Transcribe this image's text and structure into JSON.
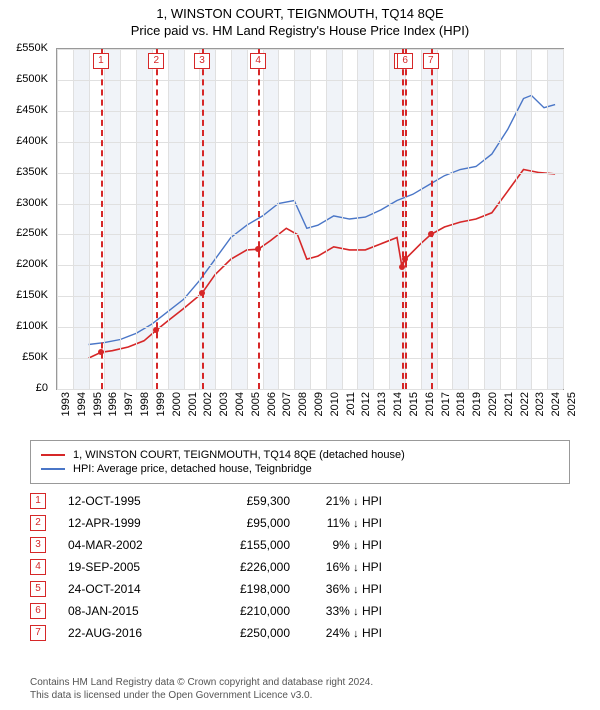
{
  "title": "1, WINSTON COURT, TEIGNMOUTH, TQ14 8QE",
  "subtitle": "Price paid vs. HM Land Registry's House Price Index (HPI)",
  "chart": {
    "type": "line",
    "background_color": "#ffffff",
    "band_color": "#f0f3f8",
    "grid_color": "#e0e0e0",
    "axis_color": "#999999",
    "ylim": [
      0,
      550000
    ],
    "ytick_step": 50000,
    "yticks_labels": [
      "£0",
      "£50K",
      "£100K",
      "£150K",
      "£200K",
      "£250K",
      "£300K",
      "£350K",
      "£400K",
      "£450K",
      "£500K",
      "£550K"
    ],
    "xlim": [
      1993,
      2025
    ],
    "xticks": [
      1993,
      1994,
      1995,
      1996,
      1997,
      1998,
      1999,
      2000,
      2001,
      2002,
      2003,
      2004,
      2005,
      2006,
      2007,
      2008,
      2009,
      2010,
      2011,
      2012,
      2013,
      2014,
      2015,
      2016,
      2017,
      2018,
      2019,
      2020,
      2021,
      2022,
      2023,
      2024,
      2025
    ],
    "event_line_color": "#d62728",
    "event_line_dash": "4,3",
    "series": {
      "red": {
        "label": "1, WINSTON COURT, TEIGNMOUTH, TQ14 8QE (detached house)",
        "color": "#d62728",
        "line_width": 1.6,
        "points": [
          [
            1995.0,
            50000
          ],
          [
            1995.78,
            59300
          ],
          [
            1996.5,
            62000
          ],
          [
            1997.5,
            68000
          ],
          [
            1998.5,
            78000
          ],
          [
            1999.28,
            95000
          ],
          [
            2000.0,
            110000
          ],
          [
            2001.0,
            130000
          ],
          [
            2002.17,
            155000
          ],
          [
            2003.0,
            185000
          ],
          [
            2004.0,
            210000
          ],
          [
            2005.0,
            225000
          ],
          [
            2005.72,
            226000
          ],
          [
            2006.5,
            240000
          ],
          [
            2007.5,
            260000
          ],
          [
            2008.2,
            250000
          ],
          [
            2008.8,
            210000
          ],
          [
            2009.5,
            215000
          ],
          [
            2010.5,
            230000
          ],
          [
            2011.5,
            225000
          ],
          [
            2012.5,
            225000
          ],
          [
            2013.5,
            235000
          ],
          [
            2014.5,
            245000
          ],
          [
            2014.81,
            198000
          ],
          [
            2015.02,
            210000
          ],
          [
            2016.0,
            235000
          ],
          [
            2016.64,
            250000
          ],
          [
            2017.5,
            262000
          ],
          [
            2018.5,
            270000
          ],
          [
            2019.5,
            275000
          ],
          [
            2020.5,
            285000
          ],
          [
            2021.5,
            320000
          ],
          [
            2022.5,
            355000
          ],
          [
            2023.5,
            350000
          ],
          [
            2024.5,
            348000
          ]
        ],
        "markers": [
          [
            1995.78,
            59300
          ],
          [
            1999.28,
            95000
          ],
          [
            2002.17,
            155000
          ],
          [
            2005.72,
            226000
          ],
          [
            2014.81,
            198000
          ],
          [
            2015.02,
            210000
          ],
          [
            2016.64,
            250000
          ]
        ]
      },
      "blue": {
        "label": "HPI: Average price, detached house, Teignbridge",
        "color": "#4a76c7",
        "line_width": 1.4,
        "points": [
          [
            1995.0,
            72000
          ],
          [
            1996.0,
            75000
          ],
          [
            1997.0,
            80000
          ],
          [
            1998.0,
            90000
          ],
          [
            1999.0,
            105000
          ],
          [
            2000.0,
            125000
          ],
          [
            2001.0,
            145000
          ],
          [
            2002.0,
            175000
          ],
          [
            2003.0,
            210000
          ],
          [
            2004.0,
            245000
          ],
          [
            2005.0,
            265000
          ],
          [
            2006.0,
            280000
          ],
          [
            2007.0,
            300000
          ],
          [
            2008.0,
            305000
          ],
          [
            2008.8,
            260000
          ],
          [
            2009.5,
            265000
          ],
          [
            2010.5,
            280000
          ],
          [
            2011.5,
            275000
          ],
          [
            2012.5,
            278000
          ],
          [
            2013.5,
            290000
          ],
          [
            2014.5,
            305000
          ],
          [
            2015.5,
            315000
          ],
          [
            2016.5,
            330000
          ],
          [
            2017.5,
            345000
          ],
          [
            2018.5,
            355000
          ],
          [
            2019.5,
            360000
          ],
          [
            2020.5,
            380000
          ],
          [
            2021.5,
            420000
          ],
          [
            2022.5,
            470000
          ],
          [
            2023.0,
            475000
          ],
          [
            2023.8,
            455000
          ],
          [
            2024.5,
            460000
          ]
        ]
      }
    }
  },
  "events": [
    {
      "n": "1",
      "x": 1995.78,
      "date": "12-OCT-1995",
      "price": "£59,300",
      "delta": "21%",
      "dir": "↓",
      "suffix": "HPI"
    },
    {
      "n": "2",
      "x": 1999.28,
      "date": "12-APR-1999",
      "price": "£95,000",
      "delta": "11%",
      "dir": "↓",
      "suffix": "HPI"
    },
    {
      "n": "3",
      "x": 2002.17,
      "date": "04-MAR-2002",
      "price": "£155,000",
      "delta": "9%",
      "dir": "↓",
      "suffix": "HPI"
    },
    {
      "n": "4",
      "x": 2005.72,
      "date": "19-SEP-2005",
      "price": "£226,000",
      "delta": "16%",
      "dir": "↓",
      "suffix": "HPI"
    },
    {
      "n": "5",
      "x": 2014.81,
      "date": "24-OCT-2014",
      "price": "£198,000",
      "delta": "36%",
      "dir": "↓",
      "suffix": "HPI"
    },
    {
      "n": "6",
      "x": 2015.02,
      "date": "08-JAN-2015",
      "price": "£210,000",
      "delta": "33%",
      "dir": "↓",
      "suffix": "HPI"
    },
    {
      "n": "7",
      "x": 2016.64,
      "date": "22-AUG-2016",
      "price": "£250,000",
      "delta": "24%",
      "dir": "↓",
      "suffix": "HPI"
    }
  ],
  "footer": {
    "l1": "Contains HM Land Registry data © Crown copyright and database right 2024.",
    "l2": "This data is licensed under the Open Government Licence v3.0."
  }
}
